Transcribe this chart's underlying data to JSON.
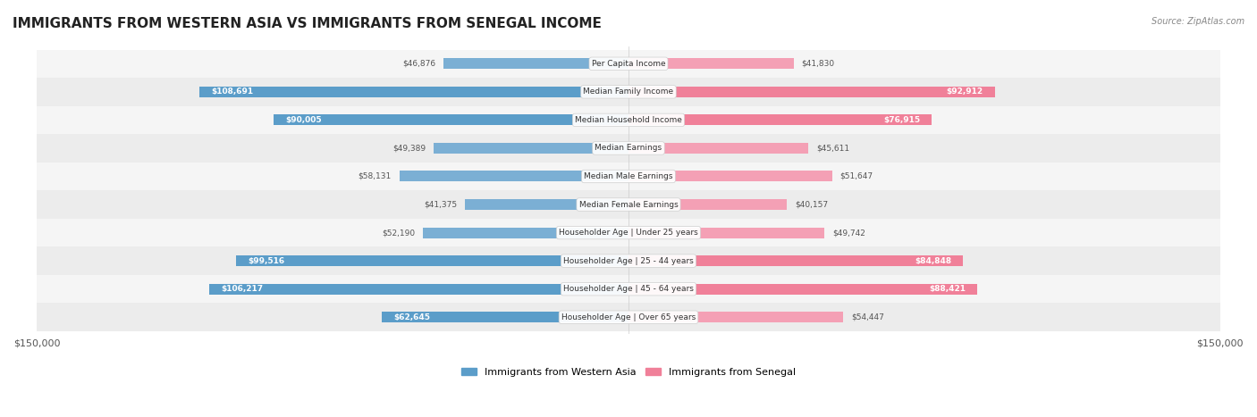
{
  "title": "IMMIGRANTS FROM WESTERN ASIA VS IMMIGRANTS FROM SENEGAL INCOME",
  "source": "Source: ZipAtlas.com",
  "categories": [
    "Per Capita Income",
    "Median Family Income",
    "Median Household Income",
    "Median Earnings",
    "Median Male Earnings",
    "Median Female Earnings",
    "Householder Age | Under 25 years",
    "Householder Age | 25 - 44 years",
    "Householder Age | 45 - 64 years",
    "Householder Age | Over 65 years"
  ],
  "western_asia": [
    46876,
    108691,
    90005,
    49389,
    58131,
    41375,
    52190,
    99516,
    106217,
    62645
  ],
  "senegal": [
    41830,
    92912,
    76915,
    45611,
    51647,
    40157,
    49742,
    84848,
    88421,
    54447
  ],
  "max_value": 150000,
  "color_western_asia": "#7bafd4",
  "color_senegal": "#f4a0b5",
  "color_western_asia_large": "#5b9dc9",
  "color_senegal_large": "#f08099",
  "label_western_asia": "Immigrants from Western Asia",
  "label_senegal": "Immigrants from Senegal",
  "bg_row": "#f0f0f0",
  "bg_white": "#ffffff"
}
